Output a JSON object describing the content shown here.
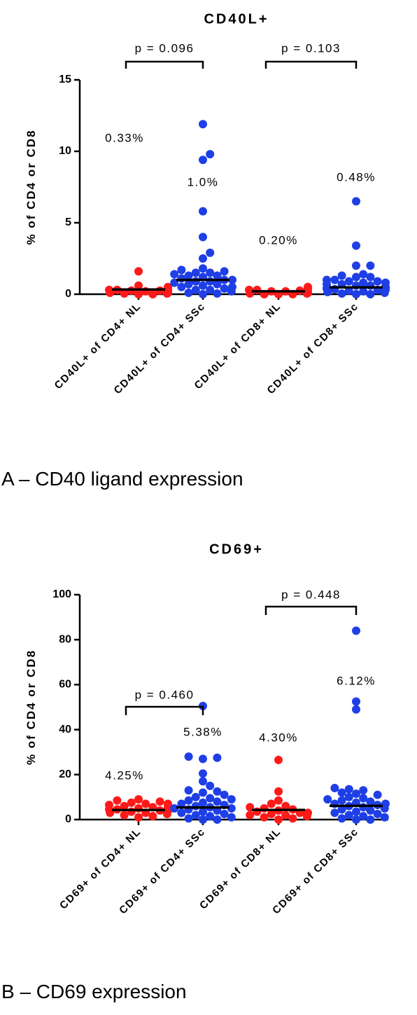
{
  "colors": {
    "nl": "#ff1a1a",
    "ssc": "#1f3fe6",
    "axis": "#000000"
  },
  "captions": {
    "a": "A – CD40 ligand expression",
    "b": "B – CD69 expression"
  },
  "chart_data": [
    {
      "type": "scatter",
      "title": "CD40L+",
      "ylabel": "% of CD4 or CD8",
      "ylim": [
        0,
        15
      ],
      "yticks": [
        0,
        5,
        10,
        15
      ],
      "categories": [
        "CD40L+ of CD4+ NL",
        "CD40L+ of CD4+ SSc",
        "CD40L+ of CD8+ NL",
        "CD40L+ of CD8+ SSc"
      ],
      "medians": [
        0.33,
        1.0,
        0.2,
        0.48
      ],
      "median_labels": [
        "0.33%",
        "1.0%",
        "0.20%",
        "0.48%"
      ],
      "comparisons": [
        {
          "from": 0,
          "to": 1,
          "label": "p = 0.096"
        },
        {
          "from": 2,
          "to": 3,
          "label": "p = 0.103"
        }
      ],
      "series": [
        {
          "group": "NL",
          "category": 0,
          "values": [
            1.6,
            0.6,
            0.5,
            0.45,
            0.4,
            0.4,
            0.35,
            0.3,
            0.3,
            0.25,
            0.25,
            0.2,
            0.2,
            0.15,
            0.15,
            0.1,
            0.1,
            0.05,
            0.05,
            0.0,
            0.0
          ]
        },
        {
          "group": "SSc",
          "category": 1,
          "values": [
            11.9,
            9.8,
            9.4,
            5.8,
            4.0,
            2.9,
            2.5,
            1.8,
            1.7,
            1.6,
            1.5,
            1.5,
            1.4,
            1.3,
            1.3,
            1.2,
            1.1,
            1.0,
            1.0,
            0.9,
            0.9,
            0.8,
            0.7,
            0.7,
            0.6,
            0.5,
            0.5,
            0.4,
            0.3,
            0.3,
            0.2,
            0.1,
            0.05,
            0.0
          ]
        },
        {
          "group": "NL",
          "category": 2,
          "values": [
            0.5,
            0.5,
            0.45,
            0.4,
            0.4,
            0.35,
            0.3,
            0.3,
            0.25,
            0.2,
            0.2,
            0.15,
            0.1,
            0.1,
            0.05,
            0.05,
            0.0,
            0.0,
            0.0
          ]
        },
        {
          "group": "SSc",
          "category": 3,
          "values": [
            6.5,
            3.4,
            2.0,
            2.0,
            1.4,
            1.3,
            1.2,
            1.2,
            1.0,
            1.0,
            0.9,
            0.9,
            0.8,
            0.8,
            0.7,
            0.7,
            0.6,
            0.6,
            0.5,
            0.5,
            0.45,
            0.4,
            0.35,
            0.3,
            0.3,
            0.25,
            0.2,
            0.15,
            0.1,
            0.05,
            0.0,
            0.0
          ]
        }
      ]
    },
    {
      "type": "scatter",
      "title": "CD69+",
      "ylabel": "% of CD4 or CD8",
      "ylim": [
        0,
        100
      ],
      "yticks": [
        0,
        20,
        40,
        60,
        80,
        100
      ],
      "categories": [
        "CD69+ of CD4+ NL",
        "CD69+ of CD4+ SSc",
        "CD69+ of CD8+ NL",
        "CD69+ of CD8+ SSc"
      ],
      "medians": [
        4.25,
        5.38,
        4.3,
        6.12
      ],
      "median_labels": [
        "4.25%",
        "5.38%",
        "4.30%",
        "6.12%"
      ],
      "comparisons": [
        {
          "from": 0,
          "to": 1,
          "label": "p = 0.460"
        },
        {
          "from": 2,
          "to": 3,
          "label": "p = 0.448"
        }
      ],
      "series": [
        {
          "group": "NL",
          "category": 0,
          "values": [
            9.0,
            8.5,
            8.0,
            7.5,
            7.0,
            7.0,
            6.5,
            6.0,
            6.0,
            5.5,
            5.0,
            5.0,
            4.5,
            4.5,
            4.0,
            4.0,
            3.5,
            3.0,
            3.0,
            2.5,
            2.0,
            1.5,
            1.0
          ]
        },
        {
          "group": "SSc",
          "category": 1,
          "values": [
            50.5,
            28.0,
            27.5,
            27.0,
            20.5,
            17.0,
            15.0,
            13.0,
            12.5,
            12.0,
            11.0,
            10.0,
            9.5,
            9.0,
            8.5,
            8.0,
            7.5,
            7.0,
            6.5,
            6.0,
            5.5,
            5.0,
            5.0,
            4.5,
            4.0,
            3.5,
            3.0,
            2.5,
            2.0,
            1.5,
            1.0,
            0.5,
            0.0,
            0.0
          ]
        },
        {
          "group": "NL",
          "category": 2,
          "values": [
            26.5,
            12.5,
            8.5,
            7.0,
            6.0,
            5.5,
            5.0,
            4.5,
            4.0,
            3.5,
            3.0,
            3.0,
            2.5,
            2.0,
            2.0,
            1.5,
            1.0,
            0.5,
            0.0
          ]
        },
        {
          "group": "SSc",
          "category": 3,
          "values": [
            84.0,
            52.5,
            49.0,
            14.0,
            13.5,
            13.0,
            12.0,
            11.5,
            11.0,
            10.0,
            9.5,
            9.0,
            8.5,
            8.0,
            7.5,
            7.0,
            7.0,
            6.5,
            6.0,
            5.5,
            5.0,
            4.5,
            4.0,
            3.5,
            3.0,
            2.5,
            2.0,
            1.5,
            1.0,
            0.5,
            0.0,
            0.0
          ]
        }
      ]
    }
  ]
}
